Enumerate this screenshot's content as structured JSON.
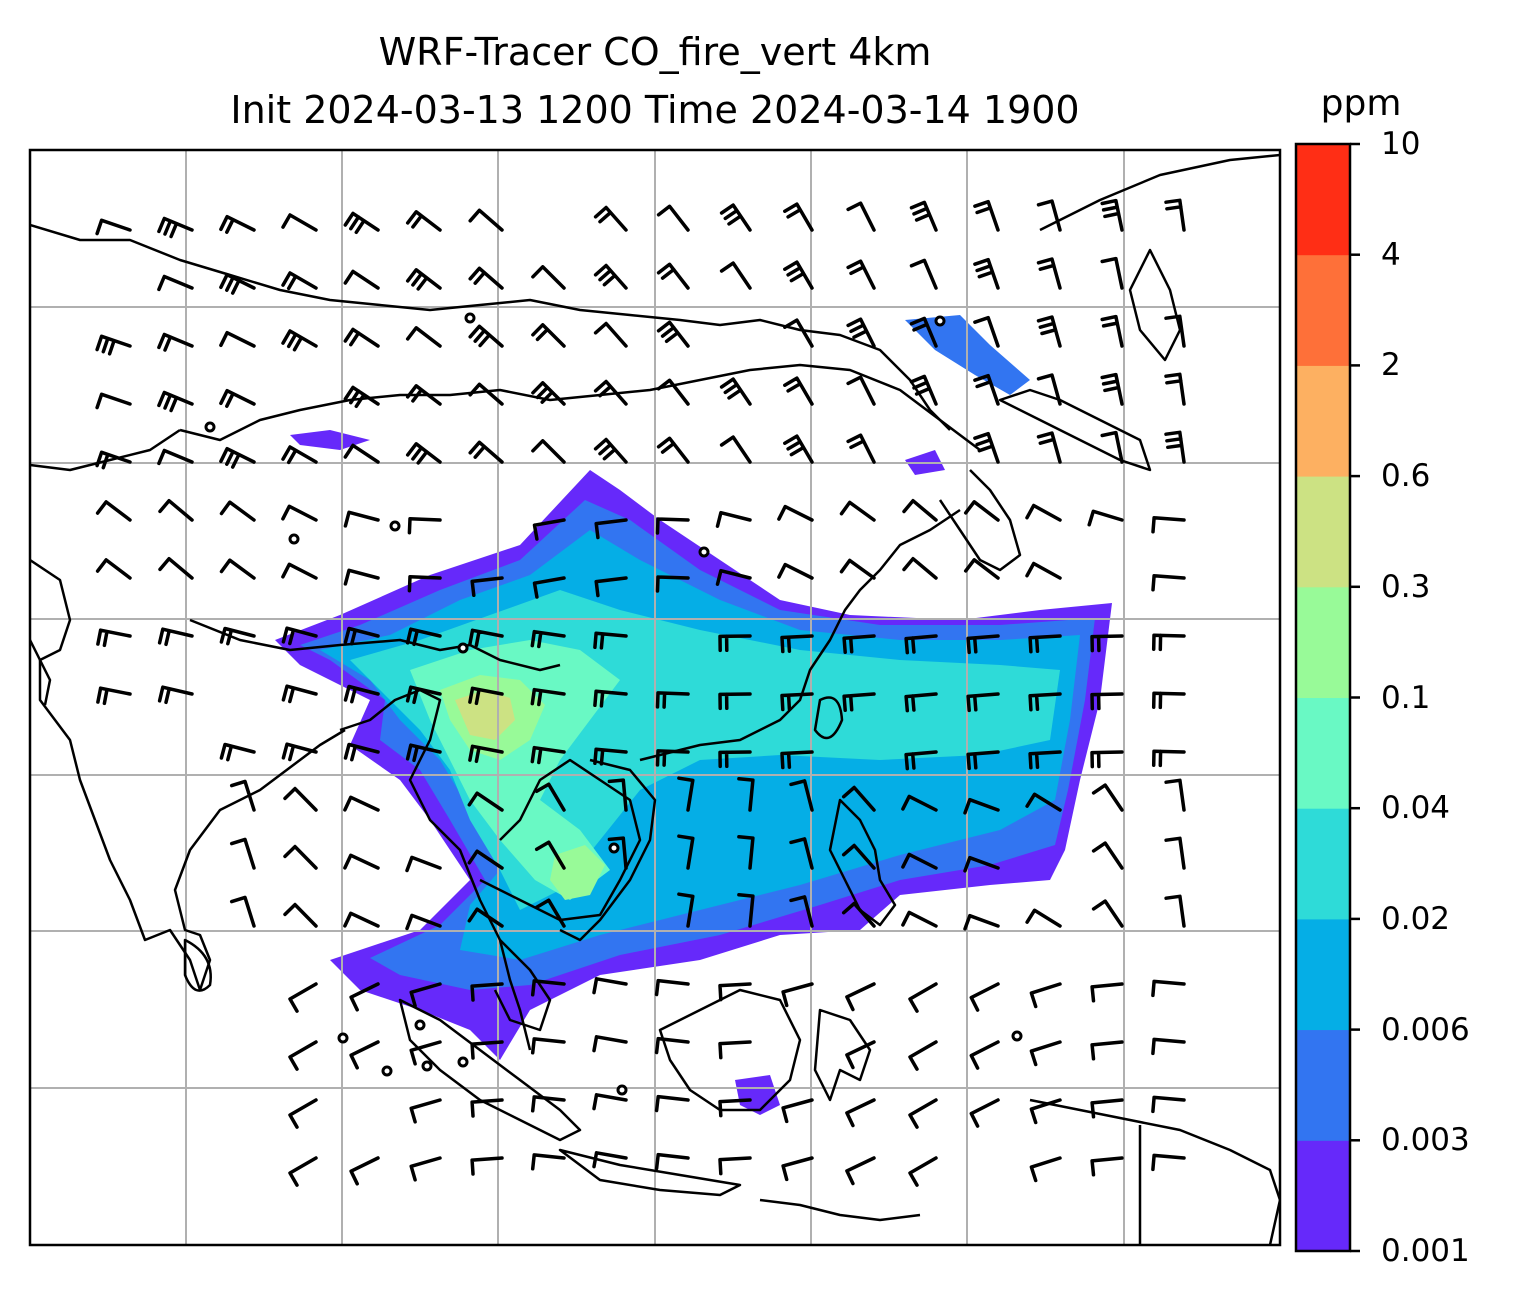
{
  "title": {
    "line1": "WRF-Tracer CO_fire_vert 4km",
    "line2": "Init 2024-03-13 1200 Time 2024-03-14 1900"
  },
  "colorbar": {
    "unit": "ppm",
    "levels": [
      "0.001",
      "0.003",
      "0.006",
      "0.02",
      "0.04",
      "0.1",
      "0.3",
      "0.6",
      "2",
      "4",
      "10"
    ],
    "colors": [
      "#6629fa",
      "#3275f1",
      "#05aee6",
      "#2edbd8",
      "#69f9c4",
      "#98fa98",
      "#cce283",
      "#fdb061",
      "#fe7039",
      "#ff2e15"
    ]
  },
  "map": {
    "coastline_color": "#000000",
    "grid_color": "#b0b0b0",
    "barb_color": "#000000"
  }
}
